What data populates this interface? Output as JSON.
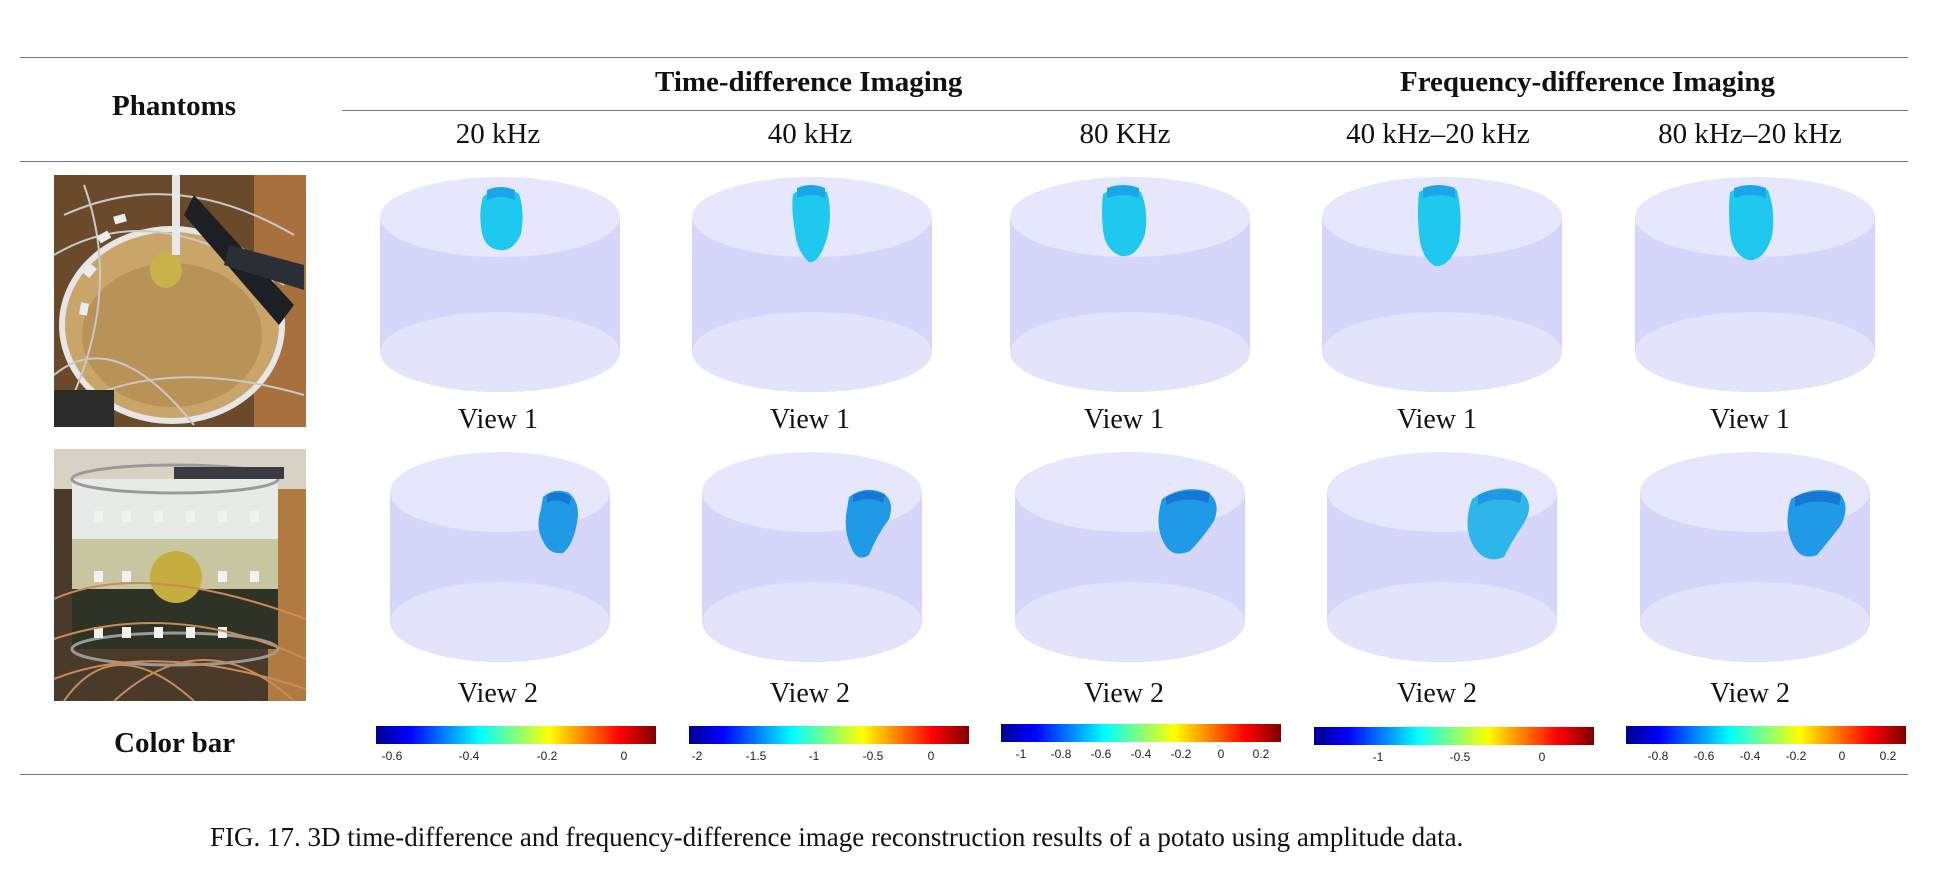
{
  "table": {
    "header": {
      "phantoms": "Phantoms",
      "time_diff": "Time-difference Imaging",
      "freq_diff": "Frequency-difference Imaging",
      "columns": [
        "20 kHz",
        "40 kHz",
        "80 KHz",
        "40 kHz–20 kHz",
        "80 kHz–20 kHz"
      ]
    },
    "rows": [
      {
        "photo": "phantom-photo-top-view",
        "view_label": "View 1"
      },
      {
        "photo": "phantom-photo-side-view",
        "view_label": "View 2"
      }
    ],
    "colorbar_label": "Color bar",
    "colorbars": [
      {
        "ticks": [
          "-0.6",
          "-0.4",
          "-0.2",
          "0"
        ]
      },
      {
        "ticks": [
          "-2",
          "-1.5",
          "-1",
          "-0.5",
          "0"
        ]
      },
      {
        "ticks": [
          "-1",
          "-0.8",
          "-0.6",
          "-0.4",
          "-0.2",
          "0",
          "0.2"
        ]
      },
      {
        "ticks": [
          "-1",
          "-0.5",
          "0"
        ]
      },
      {
        "ticks": [
          "-0.8",
          "-0.6",
          "-0.4",
          "-0.2",
          "0",
          "0.2"
        ]
      }
    ]
  },
  "caption": "FIG. 17.  3D time-difference and frequency-difference image reconstruction results of a potato using amplitude data.",
  "colors": {
    "cylinder_fill": "#d6d6fb",
    "cylinder_top": "#e4e4fd",
    "inclusion": "#1ec8ee",
    "inclusion_view2": "#1e9ae6",
    "rule": "#7a7a7a"
  }
}
